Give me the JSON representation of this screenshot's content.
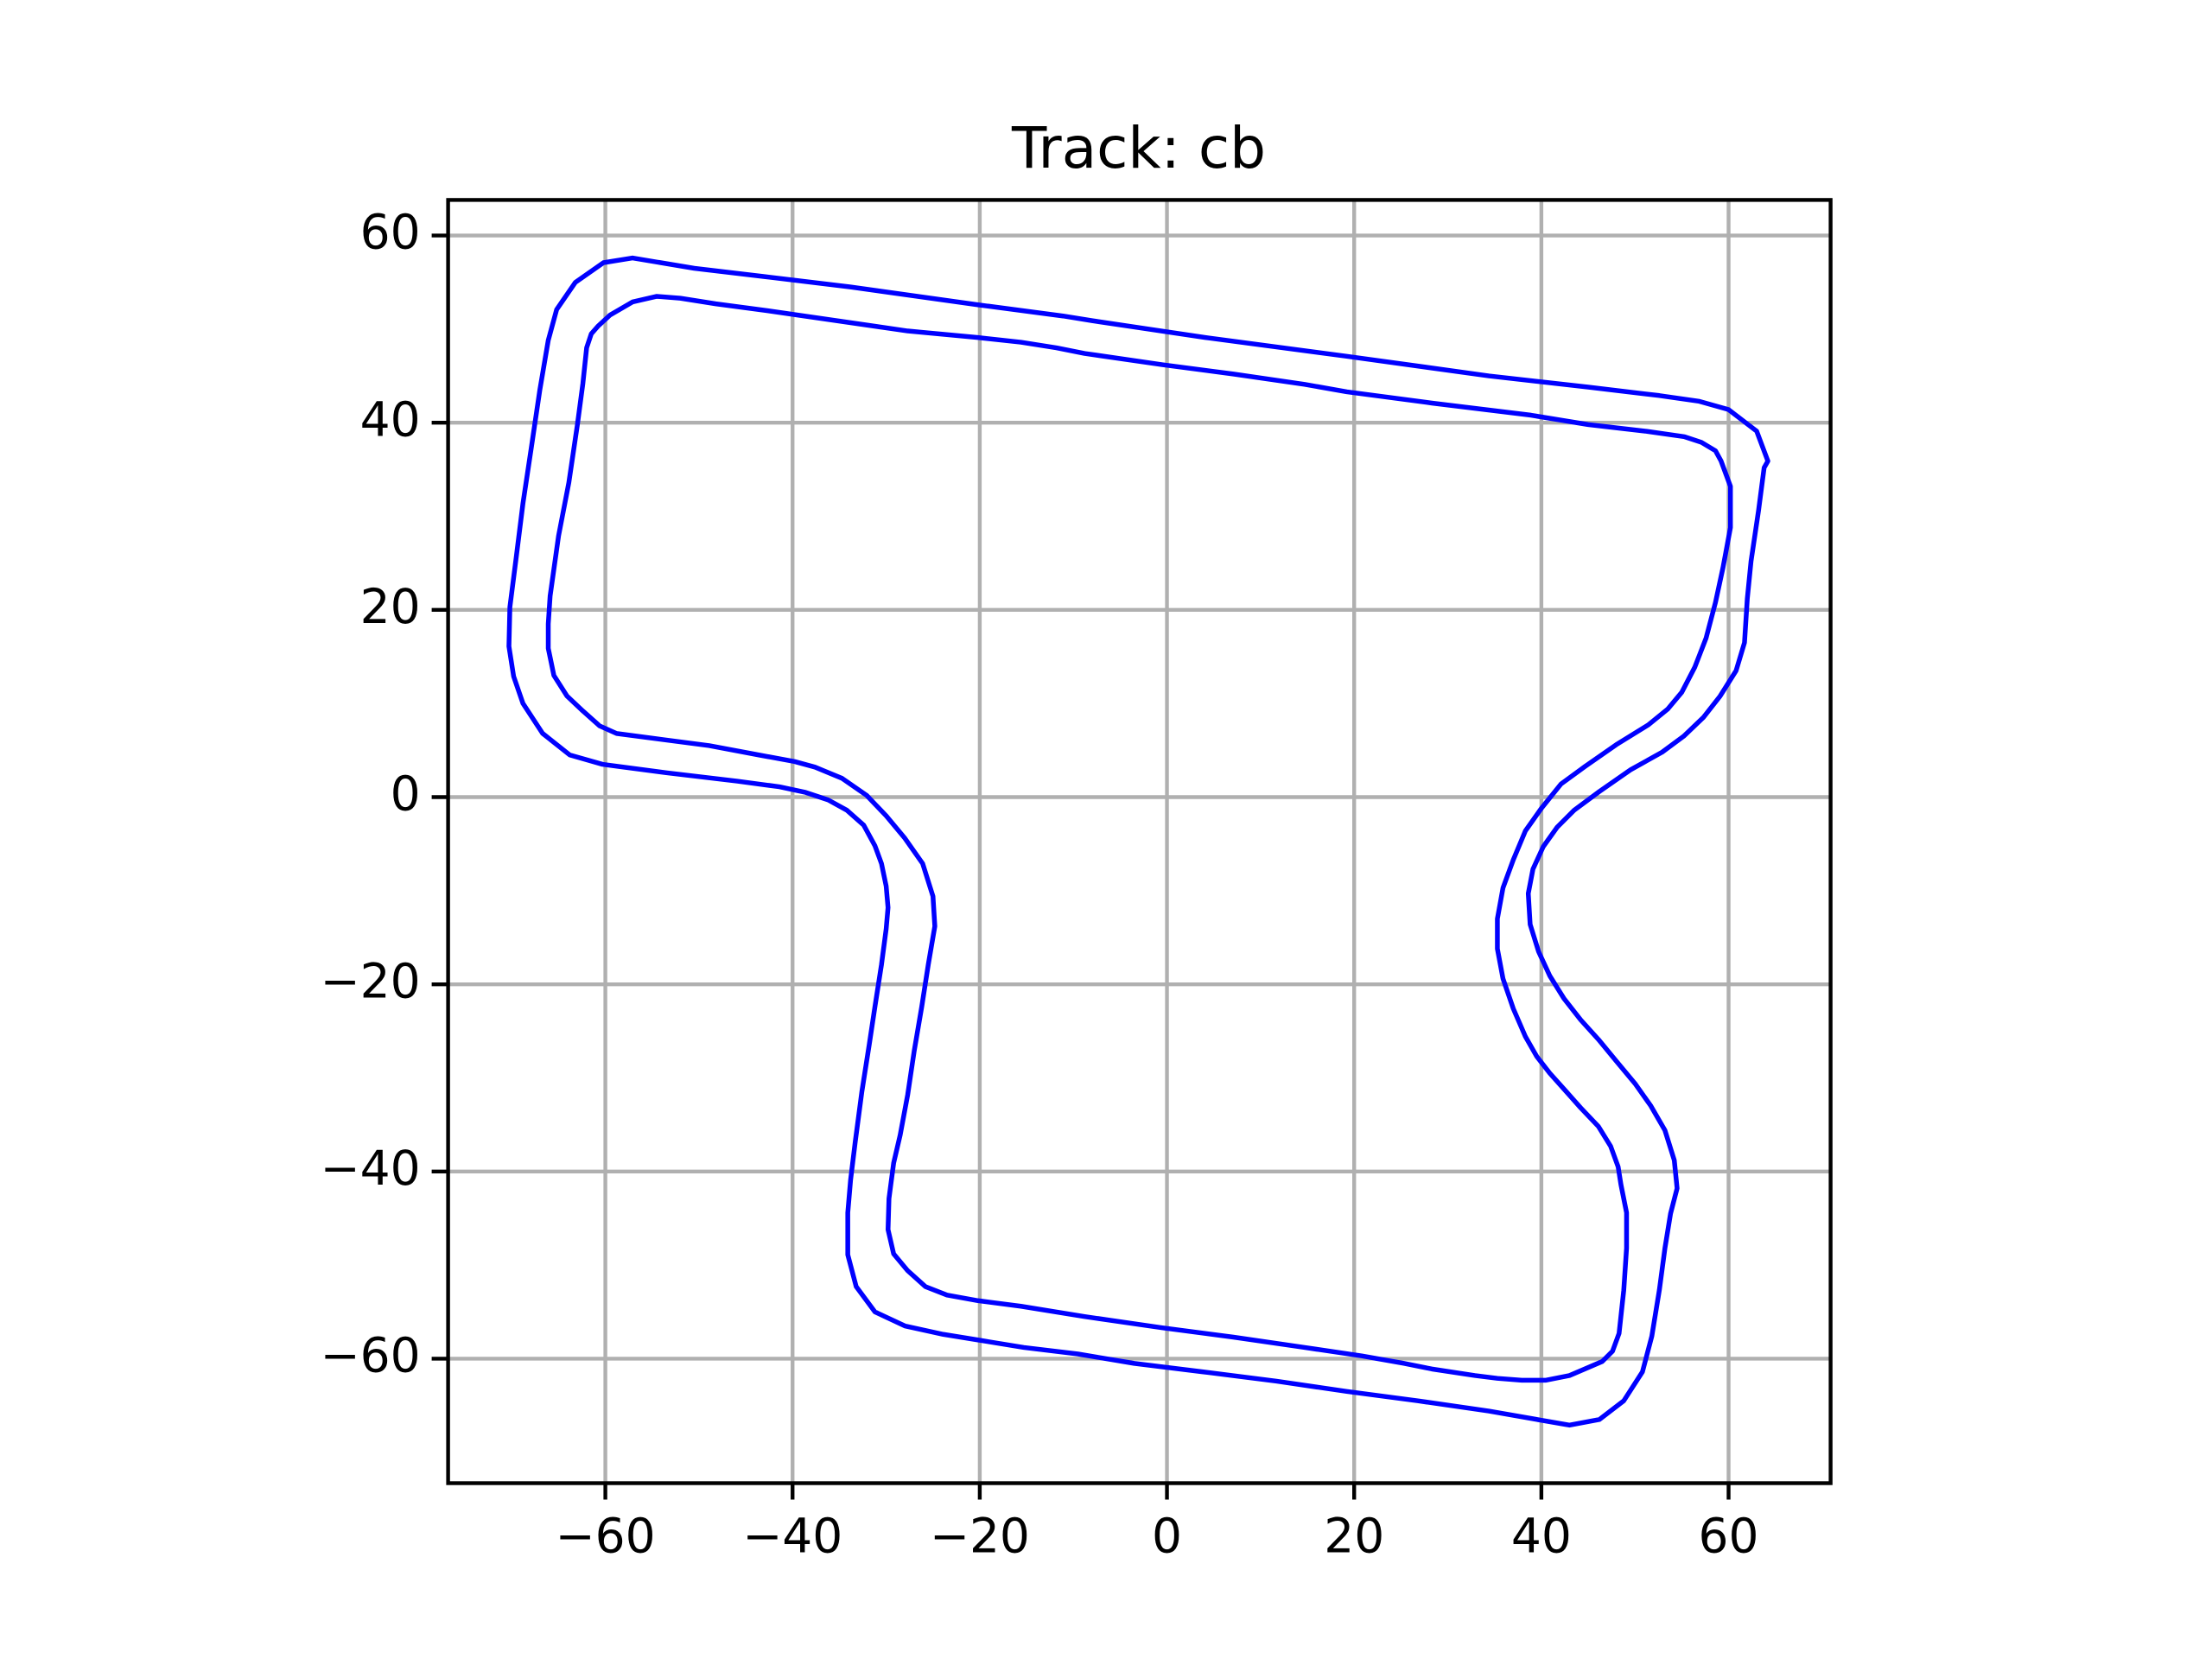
{
  "chart_data": {
    "type": "line",
    "title": "Track: cb",
    "xlim": [
      -76.8,
      70.9
    ],
    "ylim": [
      -73.3,
      63.8
    ],
    "xticks": [
      {
        "value": -60,
        "label": "−60"
      },
      {
        "value": -40,
        "label": "−40"
      },
      {
        "value": -20,
        "label": "−20"
      },
      0,
      20,
      40,
      60
    ],
    "yticks": [
      {
        "value": -60,
        "label": "−60"
      },
      {
        "value": -40,
        "label": "−40"
      },
      {
        "value": -20,
        "label": "−20"
      },
      0,
      20,
      40,
      60
    ],
    "grid": true,
    "closed": true,
    "series": [
      {
        "color": "#0000ff",
        "x": [
          -57.1,
          -60.2,
          -63.2,
          -65.2,
          -66.1,
          -67.0,
          -67.9,
          -68.8,
          -69.5,
          -70.2,
          -70.3,
          -69.8,
          -68.8,
          -66.7,
          -63.8,
          -60.3,
          -53.5,
          -45.9,
          -41.4,
          -38.6,
          -36.2,
          -34.2,
          -32.4,
          -31.2,
          -30.5,
          -30.0,
          -29.8,
          -30.0,
          -30.5,
          -31.2,
          -31.8,
          -32.6,
          -33.3,
          -33.8,
          -34.1,
          -34.1,
          -33.2,
          -31.2,
          -28.0,
          -23.9,
          -20.2,
          -15.3,
          -9.5,
          -3.5,
          3.8,
          11.7,
          19.2,
          26.8,
          34.4,
          43.0,
          46.2,
          48.8,
          50.8,
          51.8,
          52.6,
          53.2,
          53.8,
          54.5,
          54.2,
          53.2,
          51.7,
          50.0,
          48.0,
          46.1,
          44.2,
          42.4,
          40.9,
          39.7,
          38.8,
          38.6,
          39.1,
          40.2,
          41.7,
          43.5,
          46.2,
          49.5,
          52.9,
          55.2,
          57.3,
          59.1,
          60.8,
          61.7,
          62.0,
          62.4,
          63.2,
          63.8,
          64.2,
          63.0,
          60.0,
          56.8,
          52.6,
          45.0,
          34.4,
          19.2,
          4.1,
          -8.0,
          -11.1,
          -20.2,
          -33.8,
          -42.9,
          -50.5
        ],
        "y": [
          57.6,
          57.1,
          55.0,
          52.1,
          48.8,
          43.5,
          37.4,
          31.4,
          25.8,
          20.3,
          16.1,
          12.9,
          10.0,
          6.8,
          4.5,
          3.5,
          2.6,
          1.7,
          1.1,
          0.5,
          -0.3,
          -1.4,
          -3.0,
          -5.2,
          -7.1,
          -9.5,
          -11.8,
          -14.1,
          -17.9,
          -22.4,
          -26.4,
          -31.5,
          -36.8,
          -40.9,
          -44.4,
          -48.9,
          -52.3,
          -55.0,
          -56.5,
          -57.4,
          -58.0,
          -58.8,
          -59.5,
          -60.5,
          -61.4,
          -62.4,
          -63.5,
          -64.5,
          -65.6,
          -67.1,
          -66.5,
          -64.5,
          -61.4,
          -57.6,
          -52.7,
          -48.2,
          -44.5,
          -41.8,
          -38.8,
          -35.6,
          -33.0,
          -30.6,
          -28.2,
          -25.9,
          -23.8,
          -21.5,
          -19.1,
          -16.5,
          -13.6,
          -10.3,
          -7.7,
          -5.3,
          -3.2,
          -1.4,
          0.6,
          2.9,
          4.8,
          6.5,
          8.5,
          10.8,
          13.5,
          16.5,
          21.2,
          25.2,
          30.6,
          35.2,
          35.9,
          39.1,
          41.4,
          42.3,
          42.9,
          43.8,
          45.0,
          47.1,
          49.1,
          50.9,
          51.4,
          52.6,
          54.5,
          55.6,
          56.5
        ]
      },
      {
        "color": "#0000ff",
        "x": [
          -54.5,
          -57.1,
          -59.5,
          -60.8,
          -61.5,
          -62.0,
          -62.4,
          -63.0,
          -63.9,
          -65.0,
          -65.9,
          -66.1,
          -66.1,
          -65.5,
          -64.1,
          -62.4,
          -60.6,
          -58.8,
          -53.5,
          -48.9,
          -43.6,
          -39.8,
          -37.6,
          -34.7,
          -32.1,
          -30.0,
          -28.0,
          -26.1,
          -25.0,
          -24.8,
          -25.5,
          -26.2,
          -27.0,
          -27.7,
          -28.5,
          -29.2,
          -29.7,
          -29.8,
          -29.2,
          -27.7,
          -25.8,
          -23.5,
          -20.2,
          -15.6,
          -8.8,
          -0.5,
          7.1,
          14.7,
          20.8,
          25.3,
          28.3,
          32.9,
          35.3,
          37.9,
          40.5,
          43.0,
          46.5,
          47.6,
          48.3,
          48.8,
          49.1,
          49.1,
          48.5,
          48.2,
          47.4,
          46.1,
          44.2,
          42.6,
          40.9,
          39.5,
          38.3,
          37.0,
          35.9,
          35.3,
          35.3,
          35.9,
          37.0,
          38.3,
          40.0,
          42.1,
          44.7,
          48.0,
          51.4,
          53.5,
          55.0,
          56.4,
          57.6,
          58.6,
          59.4,
          60.2,
          60.2,
          59.2,
          58.6,
          57.1,
          55.3,
          51.1,
          45.0,
          38.9,
          28.3,
          19.2,
          14.7,
          7.1,
          -0.5,
          -8.8,
          -11.8,
          -15.6,
          -20.2,
          -27.7,
          -35.3,
          -42.9,
          -48.2,
          -52.0
        ],
        "y": [
          53.5,
          52.9,
          51.5,
          50.3,
          49.5,
          48.0,
          44.2,
          39.7,
          33.6,
          27.9,
          21.5,
          18.5,
          15.9,
          13.0,
          10.8,
          9.2,
          7.6,
          6.8,
          6.1,
          5.5,
          4.5,
          3.8,
          3.2,
          2.0,
          0.2,
          -2.0,
          -4.4,
          -7.1,
          -10.6,
          -13.8,
          -17.9,
          -22.4,
          -27.1,
          -31.8,
          -36.1,
          -39.1,
          -42.9,
          -46.2,
          -48.8,
          -50.6,
          -52.3,
          -53.2,
          -53.8,
          -54.4,
          -55.5,
          -56.7,
          -57.7,
          -58.8,
          -59.7,
          -60.5,
          -61.1,
          -61.8,
          -62.1,
          -62.3,
          -62.3,
          -61.8,
          -60.3,
          -59.2,
          -57.3,
          -52.7,
          -48.2,
          -44.4,
          -41.4,
          -39.5,
          -37.3,
          -35.2,
          -33.2,
          -31.4,
          -29.5,
          -27.7,
          -25.6,
          -22.6,
          -19.4,
          -16.2,
          -13.0,
          -9.7,
          -6.7,
          -3.6,
          -1.2,
          1.4,
          3.3,
          5.6,
          7.7,
          9.4,
          11.2,
          13.9,
          17.0,
          20.8,
          24.5,
          28.8,
          33.2,
          35.9,
          37.0,
          37.9,
          38.5,
          39.1,
          39.8,
          40.8,
          42.1,
          43.3,
          44.1,
          45.2,
          46.2,
          47.4,
          48.0,
          48.6,
          49.1,
          49.8,
          50.9,
          52.0,
          52.7,
          53.3
        ]
      }
    ]
  }
}
